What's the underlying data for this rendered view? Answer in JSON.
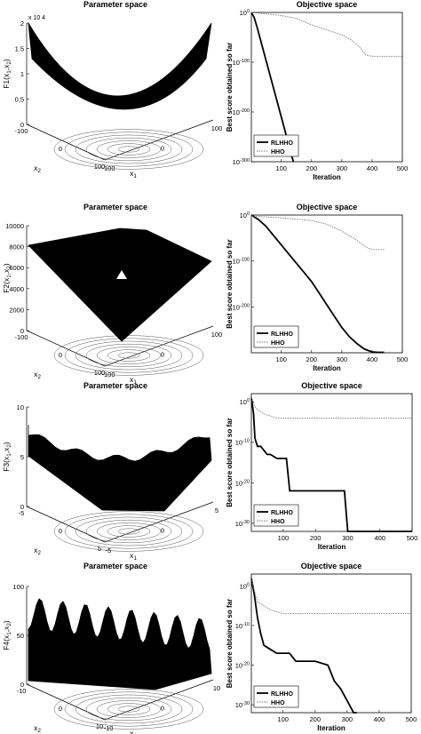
{
  "chart_data": [
    {
      "type": "surface",
      "title": "Parameter space",
      "zlabel": "F1( x 1 , x 2 )",
      "xlabel": "x 1",
      "ylabel": "x 2",
      "x_ticks": [
        "-100",
        "0",
        "100"
      ],
      "y_ticks": [
        "-100",
        "0",
        "100"
      ],
      "z_ticks": [
        "0",
        "0.5",
        "1",
        "1.5",
        "2"
      ],
      "z_multiplier": "x 10 4",
      "shape": "paraboloid"
    },
    {
      "type": "line",
      "title": "Objective space",
      "xlabel": "Iteration",
      "ylabel": "Best score obtained so far",
      "xlim": [
        1,
        500
      ],
      "ylim_log10": [
        -300,
        0
      ],
      "x_ticks": [
        "100",
        "200",
        "300",
        "400",
        "500"
      ],
      "y_ticks": [
        {
          "exp": 0,
          "label": "10 0"
        },
        {
          "exp": -100,
          "label": "10 -100"
        },
        {
          "exp": -200,
          "label": "10 -200"
        },
        {
          "exp": -300,
          "label": "10 -300"
        }
      ],
      "legend": [
        "RLHHO",
        "HHO"
      ],
      "legend_position": "bottom-left",
      "series": [
        {
          "name": "RLHHO",
          "style": "solid",
          "x": [
            1,
            10,
            20,
            40,
            60,
            80,
            100,
            120,
            130,
            140
          ],
          "log10_y": [
            0,
            -10,
            -30,
            -75,
            -120,
            -165,
            -210,
            -255,
            -280,
            -300
          ]
        },
        {
          "name": "HHO",
          "style": "dotted",
          "x": [
            1,
            50,
            100,
            150,
            200,
            250,
            300,
            330,
            360,
            380,
            400,
            450,
            500
          ],
          "log10_y": [
            0,
            -3,
            -6,
            -12,
            -25,
            -35,
            -45,
            -55,
            -70,
            -86,
            -88,
            -88,
            -88
          ]
        }
      ]
    },
    {
      "type": "surface",
      "title": "Parameter space",
      "zlabel": "F2( x 1 , x 2 )",
      "xlabel": "x 1",
      "ylabel": "x 2",
      "x_ticks": [
        "-100",
        "0",
        "100"
      ],
      "y_ticks": [
        "-100",
        "0",
        "100"
      ],
      "z_ticks": [
        "0",
        "2000",
        "4000",
        "6000",
        "8000",
        "10000"
      ],
      "z_multiplier": "",
      "shape": "pyramid"
    },
    {
      "type": "line",
      "title": "Objective space",
      "xlabel": "Iteration",
      "ylabel": "Best score obtained so far",
      "xlim": [
        1,
        500
      ],
      "ylim_log10": [
        -300,
        0
      ],
      "x_ticks": [
        "100",
        "200",
        "300",
        "400",
        "500"
      ],
      "y_ticks": [
        {
          "exp": 0,
          "label": "10 0"
        },
        {
          "exp": -100,
          "label": "10 -100"
        },
        {
          "exp": -200,
          "label": "10 -200"
        }
      ],
      "legend": [
        "RLHHO",
        "HHO"
      ],
      "legend_position": "bottom-left",
      "series": [
        {
          "name": "RLHHO",
          "style": "solid",
          "x": [
            1,
            25,
            50,
            75,
            100,
            125,
            150,
            175,
            200,
            225,
            250,
            275,
            300,
            325,
            350,
            375,
            400,
            420,
            440
          ],
          "log10_y": [
            0,
            -10,
            -25,
            -45,
            -65,
            -85,
            -105,
            -125,
            -145,
            -170,
            -195,
            -220,
            -245,
            -265,
            -280,
            -292,
            -298,
            -299,
            -299
          ]
        },
        {
          "name": "HHO",
          "style": "dotted",
          "x": [
            1,
            50,
            100,
            150,
            200,
            250,
            300,
            350,
            380,
            400,
            440
          ],
          "log10_y": [
            -2,
            -4,
            -6,
            -9,
            -12,
            -20,
            -35,
            -55,
            -70,
            -75,
            -75
          ]
        }
      ]
    },
    {
      "type": "surface",
      "title": "Parameter space",
      "zlabel": "F3( x 1 , x 2 )",
      "xlabel": "x 1",
      "ylabel": "x 2",
      "x_ticks": [
        "-5",
        "0",
        "5"
      ],
      "y_ticks": [
        "-5",
        "0",
        "5"
      ],
      "z_ticks": [
        "0",
        "5",
        "10"
      ],
      "z_multiplier": "",
      "shape": "rastrigin"
    },
    {
      "type": "line",
      "title": "Objective space",
      "xlabel": "Iteration",
      "ylabel": "Best score obtained so far",
      "xlim": [
        1,
        500
      ],
      "ylim_log10": [
        -32,
        2
      ],
      "x_ticks": [
        "100",
        "200",
        "300",
        "400",
        "500"
      ],
      "y_ticks": [
        {
          "exp": 0,
          "label": "10 0"
        },
        {
          "exp": -10,
          "label": "10 -10"
        },
        {
          "exp": -20,
          "label": "10 -20"
        },
        {
          "exp": -30,
          "label": "10 -30"
        }
      ],
      "legend": [
        "RLHHO",
        "HHO"
      ],
      "legend_position": "bottom-left",
      "series": [
        {
          "name": "RLHHO",
          "style": "solid",
          "x": [
            1,
            8,
            12,
            20,
            30,
            50,
            60,
            80,
            110,
            120,
            145,
            290,
            300,
            500
          ],
          "log10_y": [
            1,
            -3,
            -9,
            -11,
            -11,
            -13,
            -13,
            -14,
            -14,
            -22,
            -22,
            -22,
            -32,
            -32
          ]
        },
        {
          "name": "HHO",
          "style": "dotted",
          "x": [
            1,
            10,
            20,
            40,
            60,
            80,
            100,
            150,
            500
          ],
          "log10_y": [
            1,
            -1,
            -2,
            -3,
            -3.5,
            -4,
            -4,
            -4,
            -4
          ]
        }
      ]
    },
    {
      "type": "surface",
      "title": "Parameter space",
      "zlabel": "F4( x 1 , x 2 )",
      "xlabel": "x 1",
      "ylabel": "x 2",
      "x_ticks": [
        "-10",
        "0",
        "10"
      ],
      "y_ticks": [
        "-10",
        "0",
        "10"
      ],
      "z_ticks": [
        "0",
        "50",
        "100"
      ],
      "z_multiplier": "",
      "shape": "griewank"
    },
    {
      "type": "line",
      "title": "Objective space",
      "xlabel": "Iteration",
      "ylabel": "Best score obtained so far",
      "xlim": [
        1,
        500
      ],
      "ylim_log10": [
        -32,
        3
      ],
      "x_ticks": [
        "100",
        "200",
        "300",
        "400",
        "500"
      ],
      "y_ticks": [
        {
          "exp": 0,
          "label": "10 0"
        },
        {
          "exp": -10,
          "label": "10 -10"
        },
        {
          "exp": -20,
          "label": "10 -20"
        },
        {
          "exp": -30,
          "label": "10 -30"
        }
      ],
      "legend": [
        "RLHHO",
        "HHO"
      ],
      "legend_position": "bottom-left",
      "series": [
        {
          "name": "RLHHO",
          "style": "solid",
          "x": [
            1,
            10,
            20,
            30,
            40,
            60,
            80,
            120,
            140,
            200,
            240,
            260,
            280,
            300,
            320,
            330
          ],
          "log10_y": [
            2,
            -2,
            -8,
            -12,
            -15,
            -16,
            -17,
            -17,
            -19,
            -19,
            -20,
            -24,
            -26,
            -29,
            -33,
            -33
          ]
        },
        {
          "name": "HHO",
          "style": "dotted",
          "x": [
            1,
            10,
            20,
            40,
            60,
            100,
            200,
            300,
            500
          ],
          "log10_y": [
            2,
            -1,
            -4,
            -5,
            -6,
            -7,
            -7,
            -7,
            -7
          ]
        }
      ]
    }
  ]
}
